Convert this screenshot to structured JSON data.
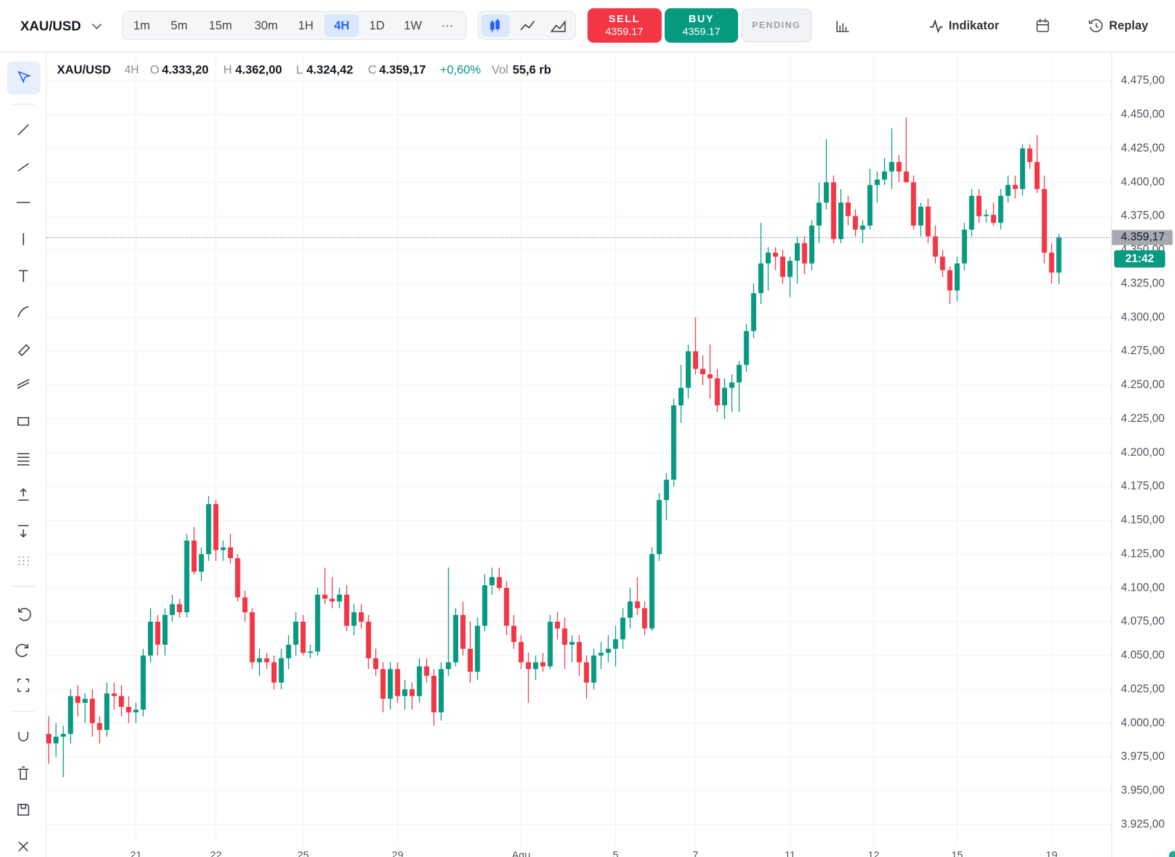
{
  "toolbar": {
    "symbol": "XAU/USD",
    "timeframes": [
      "1m",
      "5m",
      "15m",
      "30m",
      "1H",
      "4H",
      "1D",
      "1W",
      "···"
    ],
    "active_timeframe": "4H",
    "sell": {
      "label": "SELL",
      "price": "4359.17"
    },
    "buy": {
      "label": "BUY",
      "price": "4359.17"
    },
    "pending": "PENDING",
    "indicator": "Indikator",
    "replay": "Replay"
  },
  "legend": {
    "symbol": "XAU/USD",
    "interval": "4H",
    "fields": [
      {
        "key": "O",
        "value": "4.333,20"
      },
      {
        "key": "H",
        "value": "4.362,00"
      },
      {
        "key": "L",
        "value": "4.324,42"
      },
      {
        "key": "C",
        "value": "4.359,17"
      }
    ],
    "change": "+0,60%",
    "volume_label": "Vol",
    "volume": "55,6 rb"
  },
  "chart_data": {
    "type": "candlestick",
    "up_color": "#089981",
    "down_color": "#f23645",
    "candles": [
      [
        3992,
        4005,
        3970,
        3985
      ],
      [
        3985,
        4000,
        3975,
        3990
      ],
      [
        3990,
        3998,
        3960,
        3992
      ],
      [
        3992,
        4025,
        3985,
        4020
      ],
      [
        4020,
        4028,
        4005,
        4015
      ],
      [
        4015,
        4022,
        4000,
        4018
      ],
      [
        4018,
        4025,
        3990,
        4000
      ],
      [
        4000,
        4005,
        3985,
        3995
      ],
      [
        3995,
        4030,
        3990,
        4022
      ],
      [
        4022,
        4030,
        4010,
        4020
      ],
      [
        4020,
        4028,
        4005,
        4012
      ],
      [
        4012,
        4020,
        4000,
        4008
      ],
      [
        4008,
        4015,
        4000,
        4010
      ],
      [
        4010,
        4055,
        4005,
        4050
      ],
      [
        4050,
        4085,
        4045,
        4075
      ],
      [
        4075,
        4080,
        4050,
        4058
      ],
      [
        4058,
        4085,
        4050,
        4080
      ],
      [
        4080,
        4095,
        4075,
        4088
      ],
      [
        4088,
        4092,
        4078,
        4082
      ],
      [
        4082,
        4140,
        4078,
        4135
      ],
      [
        4135,
        4145,
        4110,
        4112
      ],
      [
        4112,
        4130,
        4105,
        4125
      ],
      [
        4125,
        4168,
        4120,
        4162
      ],
      [
        4162,
        4165,
        4120,
        4128
      ],
      [
        4128,
        4135,
        4120,
        4130
      ],
      [
        4130,
        4140,
        4118,
        4122
      ],
      [
        4122,
        4125,
        4090,
        4093
      ],
      [
        4093,
        4098,
        4075,
        4082
      ],
      [
        4082,
        4085,
        4040,
        4045
      ],
      [
        4045,
        4055,
        4035,
        4048
      ],
      [
        4048,
        4052,
        4040,
        4045
      ],
      [
        4045,
        4050,
        4025,
        4030
      ],
      [
        4030,
        4055,
        4025,
        4048
      ],
      [
        4048,
        4065,
        4040,
        4058
      ],
      [
        4058,
        4082,
        4050,
        4075
      ],
      [
        4075,
        4080,
        4050,
        4052
      ],
      [
        4052,
        4058,
        4048,
        4053
      ],
      [
        4053,
        4100,
        4050,
        4095
      ],
      [
        4095,
        4115,
        4088,
        4092
      ],
      [
        4092,
        4108,
        4085,
        4090
      ],
      [
        4090,
        4100,
        4085,
        4095
      ],
      [
        4095,
        4102,
        4068,
        4072
      ],
      [
        4072,
        4088,
        4065,
        4082
      ],
      [
        4082,
        4088,
        4070,
        4075
      ],
      [
        4075,
        4080,
        4040,
        4048
      ],
      [
        4048,
        4055,
        4035,
        4040
      ],
      [
        4040,
        4045,
        4008,
        4018
      ],
      [
        4018,
        4045,
        4010,
        4040
      ],
      [
        4040,
        4045,
        4015,
        4020
      ],
      [
        4020,
        4032,
        4010,
        4025
      ],
      [
        4025,
        4030,
        4010,
        4020
      ],
      [
        4020,
        4048,
        4015,
        4042
      ],
      [
        4042,
        4048,
        4030,
        4035
      ],
      [
        4035,
        4040,
        3998,
        4008
      ],
      [
        4008,
        4045,
        4002,
        4040
      ],
      [
        4040,
        4115,
        4035,
        4045
      ],
      [
        4045,
        4085,
        4042,
        4080
      ],
      [
        4080,
        4090,
        4050,
        4055
      ],
      [
        4055,
        4075,
        4030,
        4038
      ],
      [
        4038,
        4078,
        4032,
        4072
      ],
      [
        4072,
        4110,
        4068,
        4102
      ],
      [
        4102,
        4115,
        4095,
        4108
      ],
      [
        4108,
        4115,
        4098,
        4100
      ],
      [
        4100,
        4105,
        4065,
        4072
      ],
      [
        4072,
        4080,
        4055,
        4060
      ],
      [
        4060,
        4065,
        4040,
        4045
      ],
      [
        4045,
        4052,
        4015,
        4040
      ],
      [
        4040,
        4050,
        4032,
        4045
      ],
      [
        4045,
        4052,
        4038,
        4042
      ],
      [
        4042,
        4080,
        4040,
        4075
      ],
      [
        4075,
        4082,
        4062,
        4070
      ],
      [
        4070,
        4078,
        4040,
        4058
      ],
      [
        4058,
        4065,
        4045,
        4060
      ],
      [
        4060,
        4065,
        4035,
        4045
      ],
      [
        4045,
        4050,
        4018,
        4030
      ],
      [
        4030,
        4055,
        4025,
        4050
      ],
      [
        4050,
        4060,
        4040,
        4052
      ],
      [
        4052,
        4065,
        4045,
        4055
      ],
      [
        4055,
        4072,
        4042,
        4062
      ],
      [
        4062,
        4085,
        4055,
        4078
      ],
      [
        4078,
        4100,
        4070,
        4090
      ],
      [
        4090,
        4108,
        4080,
        4085
      ],
      [
        4085,
        4090,
        4065,
        4070
      ],
      [
        4070,
        4130,
        4068,
        4125
      ],
      [
        4125,
        4170,
        4120,
        4165
      ],
      [
        4165,
        4185,
        4150,
        4180
      ],
      [
        4180,
        4240,
        4175,
        4235
      ],
      [
        4235,
        4265,
        4222,
        4248
      ],
      [
        4248,
        4280,
        4240,
        4275
      ],
      [
        4275,
        4300,
        4258,
        4262
      ],
      [
        4262,
        4272,
        4250,
        4258
      ],
      [
        4258,
        4280,
        4240,
        4255
      ],
      [
        4255,
        4262,
        4230,
        4235
      ],
      [
        4235,
        4255,
        4225,
        4248
      ],
      [
        4248,
        4258,
        4230,
        4252
      ],
      [
        4252,
        4268,
        4230,
        4265
      ],
      [
        4265,
        4295,
        4260,
        4290
      ],
      [
        4290,
        4325,
        4285,
        4318
      ],
      [
        4318,
        4370,
        4310,
        4340
      ],
      [
        4340,
        4352,
        4320,
        4348
      ],
      [
        4348,
        4352,
        4335,
        4345
      ],
      [
        4345,
        4350,
        4325,
        4330
      ],
      [
        4330,
        4345,
        4315,
        4342
      ],
      [
        4342,
        4360,
        4325,
        4355
      ],
      [
        4355,
        4360,
        4332,
        4340
      ],
      [
        4340,
        4372,
        4335,
        4368
      ],
      [
        4368,
        4400,
        4355,
        4385
      ],
      [
        4385,
        4432,
        4380,
        4400
      ],
      [
        4400,
        4405,
        4355,
        4358
      ],
      [
        4358,
        4395,
        4355,
        4385
      ],
      [
        4385,
        4390,
        4368,
        4375
      ],
      [
        4375,
        4380,
        4360,
        4365
      ],
      [
        4365,
        4372,
        4355,
        4368
      ],
      [
        4368,
        4410,
        4365,
        4398
      ],
      [
        4398,
        4408,
        4385,
        4402
      ],
      [
        4402,
        4418,
        4398,
        4408
      ],
      [
        4408,
        4440,
        4395,
        4415
      ],
      [
        4415,
        4420,
        4400,
        4408
      ],
      [
        4408,
        4448,
        4400,
        4400
      ],
      [
        4400,
        4405,
        4365,
        4368
      ],
      [
        4368,
        4385,
        4360,
        4382
      ],
      [
        4382,
        4388,
        4355,
        4360
      ],
      [
        4360,
        4368,
        4340,
        4345
      ],
      [
        4345,
        4350,
        4330,
        4335
      ],
      [
        4335,
        4338,
        4310,
        4320
      ],
      [
        4320,
        4345,
        4312,
        4340
      ],
      [
        4340,
        4370,
        4335,
        4365
      ],
      [
        4365,
        4395,
        4360,
        4390
      ],
      [
        4390,
        4395,
        4370,
        4375
      ],
      [
        4375,
        4380,
        4370,
        4376
      ],
      [
        4376,
        4385,
        4368,
        4370
      ],
      [
        4370,
        4395,
        4365,
        4390
      ],
      [
        4390,
        4405,
        4385,
        4398
      ],
      [
        4398,
        4405,
        4388,
        4395
      ],
      [
        4395,
        4428,
        4390,
        4425
      ],
      [
        4425,
        4428,
        4410,
        4415
      ],
      [
        4415,
        4435,
        4392,
        4395
      ],
      [
        4395,
        4405,
        4340,
        4348
      ],
      [
        4348,
        4355,
        4325,
        4333.2
      ],
      [
        4333.2,
        4362,
        4324.42,
        4359.17
      ]
    ],
    "xlim": [
      -0.3,
      146.2
    ],
    "xticks": [
      {
        "value": 12,
        "label": "21"
      },
      {
        "value": 23,
        "label": "22"
      },
      {
        "value": 35,
        "label": "25"
      },
      {
        "value": 48,
        "label": "29"
      },
      {
        "value": 65,
        "label": "Agu"
      },
      {
        "value": 78,
        "label": "5"
      },
      {
        "value": 89,
        "label": "7"
      },
      {
        "value": 102,
        "label": "11"
      },
      {
        "value": 113.5,
        "label": "12"
      },
      {
        "value": 125,
        "label": "15"
      },
      {
        "value": 138,
        "label": "19"
      }
    ],
    "ylim": [
      3901,
      4496
    ],
    "yticks": [
      {
        "value": 4475,
        "label": "4.475,00"
      },
      {
        "value": 4450,
        "label": "4.450,00"
      },
      {
        "value": 4425,
        "label": "4.425,00"
      },
      {
        "value": 4400,
        "label": "4.400,00"
      },
      {
        "value": 4375,
        "label": "4.375,00"
      },
      {
        "value": 4350,
        "label": "4.350,00"
      },
      {
        "value": 4325,
        "label": "4.325,00"
      },
      {
        "value": 4300,
        "label": "4.300,00"
      },
      {
        "value": 4275,
        "label": "4.275,00"
      },
      {
        "value": 4250,
        "label": "4.250,00"
      },
      {
        "value": 4225,
        "label": "4.225,00"
      },
      {
        "value": 4200,
        "label": "4.200,00"
      },
      {
        "value": 4175,
        "label": "4.175,00"
      },
      {
        "value": 4150,
        "label": "4.150,00"
      },
      {
        "value": 4125,
        "label": "4.125,00"
      },
      {
        "value": 4100,
        "label": "4.100,00"
      },
      {
        "value": 4075,
        "label": "4.075,00"
      },
      {
        "value": 4050,
        "label": "4.050,00"
      },
      {
        "value": 4025,
        "label": "4.025,00"
      },
      {
        "value": 4000,
        "label": "4.000,00"
      },
      {
        "value": 3975,
        "label": "3.975,00"
      },
      {
        "value": 3950,
        "label": "3.950,00"
      },
      {
        "value": 3925,
        "label": "3.925,00"
      }
    ],
    "grid": true,
    "last_price": {
      "value": 4359.17,
      "label": "4.359,17"
    },
    "countdown": "21:42"
  }
}
